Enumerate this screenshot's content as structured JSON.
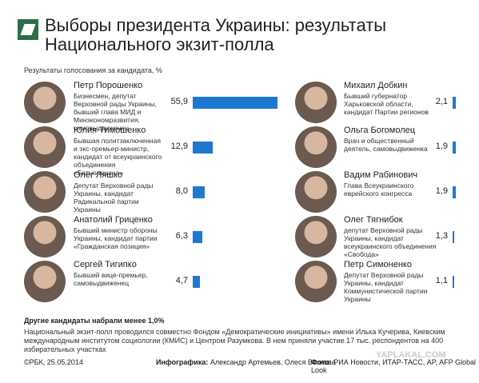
{
  "chart_data": {
    "type": "bar",
    "title": "Выборы президента Украины: результаты Национального экзит-полла",
    "subtitle": "Результаты голосования за кандидата, %",
    "categories": [
      "Петр Порошенко",
      "Юлия Тимошенко",
      "Олег Ляшко",
      "Анатолий Гриценко",
      "Сергей Тигипко",
      "Михаил Добкин",
      "Ольга Богомолец",
      "Вадим Рабинович",
      "Олег Тягнибок",
      "Петр Симоненко"
    ],
    "descriptions": [
      "Бизнесмен, депутат Верховной рады Украины, бывший глава МИД и Минэкономразвития, самовыдвиженец",
      "Бывшая политзаключенная и экс-премьер-министр, кандидат от всеукраинского объединения «Батькивщина»",
      "Депутат Верховной рады Украины, кандидат Радикальной партии Украины",
      "Бывший министр обороны Украины, кандидат партии «Гражданская позиция»",
      "Бывший вице-премьер, самовыдвиженец",
      "Бывший губернатор Харьковской области, кандидат Партии регионов",
      "Врач и общественный деятель, самовыдвиженка",
      "Глава Всеукраинского еврейского конгресса",
      "депутат Верховной рады Украины, кандидат всеукраинского объединения «Свобода»",
      "Депутат Верховной рады Украины, кандидат Коммунистической партии Украины"
    ],
    "values": [
      55.9,
      12.9,
      8.0,
      6.3,
      4.7,
      2.1,
      1.9,
      1.9,
      1.3,
      1.1
    ],
    "value_labels": [
      "55,9",
      "12,9",
      "8,0",
      "6,3",
      "4,7",
      "2,1",
      "1,9",
      "1,9",
      "1,3",
      "1,1"
    ],
    "color": "#1e78d2"
  },
  "other_candidates": "Другие кандидаты набрали менее 1,0%",
  "note": "Национальный экзит-полл проводился совместно Фондом «Демократические инициативы» имени Илька Кучерива, Киевским международным институтом социологии (КМИС) и Центром Разумкова. В нем приняли участие 17 тыс. респондентов на 400 избирательных участках",
  "footer": {
    "copyright": "©РБК, 25.05.2014",
    "infographics_label": "Инфографика:",
    "infographics": "Александр Артемьев, Олеся Волкова",
    "photo_label": "Фото:",
    "photo": "РИА Новости, ИТАР-ТАСС, AP, AFP Global Look"
  },
  "watermark": "YAPLAKAL.COM"
}
